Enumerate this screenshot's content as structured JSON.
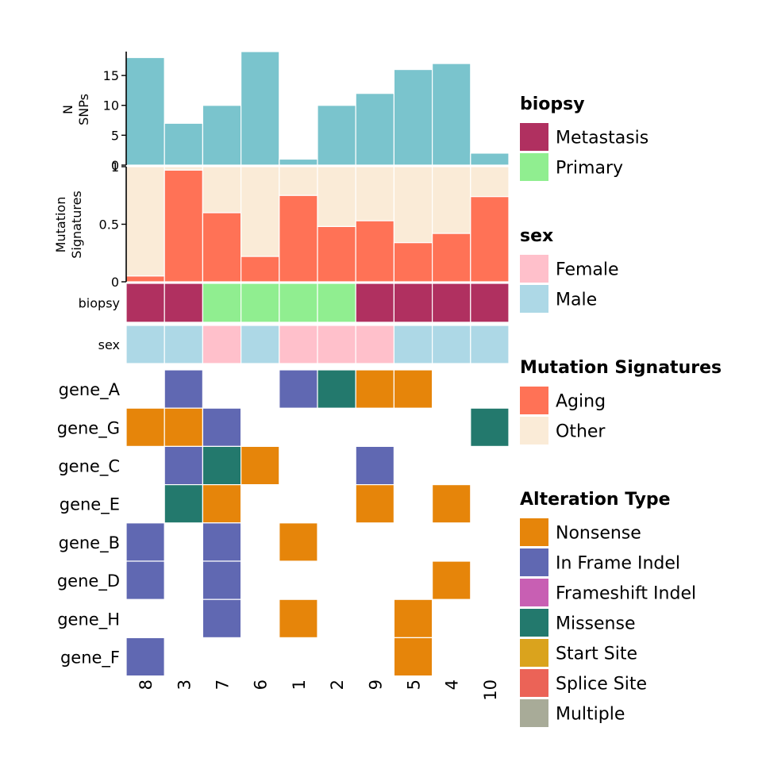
{
  "chart_data": {
    "type": "oncoplot",
    "samples": [
      "8",
      "3",
      "7",
      "6",
      "1",
      "2",
      "9",
      "5",
      "4",
      "10"
    ],
    "n_snps": {
      "ylabel_lines": [
        "N",
        "SNPs"
      ],
      "ylim": [
        0,
        19
      ],
      "ticks": [
        0,
        5,
        10,
        15
      ],
      "tick_labels": [
        "0",
        "5",
        "10",
        "15"
      ],
      "values": [
        18,
        7,
        10,
        19,
        1,
        10,
        12,
        16,
        17,
        2
      ]
    },
    "mutation_signatures": {
      "ylabel_lines": [
        "Mutation",
        "Signatures"
      ],
      "ylim": [
        0,
        1
      ],
      "ticks": [
        0,
        0.5,
        1
      ],
      "tick_labels": [
        "0",
        "0.5",
        "1"
      ],
      "aging": [
        0.05,
        0.97,
        0.6,
        0.22,
        0.75,
        0.48,
        0.53,
        0.34,
        0.42,
        0.74
      ]
    },
    "biopsy": {
      "label": "biopsy",
      "values": [
        "Metastasis",
        "Metastasis",
        "Primary",
        "Primary",
        "Primary",
        "Primary",
        "Metastasis",
        "Metastasis",
        "Metastasis",
        "Metastasis"
      ]
    },
    "sex": {
      "label": "sex",
      "values": [
        "Male",
        "Male",
        "Female",
        "Male",
        "Female",
        "Female",
        "Female",
        "Male",
        "Male",
        "Male"
      ]
    },
    "genes": [
      "gene_A",
      "gene_G",
      "gene_C",
      "gene_E",
      "gene_B",
      "gene_D",
      "gene_H",
      "gene_F"
    ],
    "alterations": [
      [
        "",
        "In Frame Indel",
        "",
        "",
        "In Frame Indel",
        "Missense",
        "Nonsense",
        "Nonsense",
        "",
        ""
      ],
      [
        "Nonsense",
        "Nonsense",
        "In Frame Indel",
        "",
        "",
        "",
        "",
        "",
        "",
        "Missense"
      ],
      [
        "",
        "In Frame Indel",
        "Missense",
        "Nonsense",
        "",
        "",
        "In Frame Indel",
        "",
        "",
        ""
      ],
      [
        "",
        "Missense",
        "Nonsense",
        "",
        "",
        "",
        "Nonsense",
        "",
        "Nonsense",
        ""
      ],
      [
        "In Frame Indel",
        "",
        "In Frame Indel",
        "",
        "Nonsense",
        "",
        "",
        "",
        "",
        ""
      ],
      [
        "In Frame Indel",
        "",
        "In Frame Indel",
        "",
        "",
        "",
        "",
        "",
        "Nonsense",
        ""
      ],
      [
        "",
        "",
        "In Frame Indel",
        "",
        "Nonsense",
        "",
        "",
        "Nonsense",
        "",
        ""
      ],
      [
        "In Frame Indel",
        "",
        "",
        "",
        "",
        "",
        "",
        "Nonsense",
        "",
        ""
      ]
    ],
    "legends": [
      {
        "title": "biopsy",
        "items": [
          {
            "label": "Metastasis",
            "color": "#B03060"
          },
          {
            "label": "Primary",
            "color": "#90EE90"
          }
        ]
      },
      {
        "title": "sex",
        "items": [
          {
            "label": "Female",
            "color": "#FFC0CB"
          },
          {
            "label": "Male",
            "color": "#ADD8E6"
          }
        ]
      },
      {
        "title": "Mutation Signatures",
        "items": [
          {
            "label": "Aging",
            "color": "#FF7256"
          },
          {
            "label": "Other",
            "color": "#FAEBD7"
          }
        ]
      },
      {
        "title": "Alteration Type",
        "items": [
          {
            "label": "Nonsense",
            "color": "#E6850A"
          },
          {
            "label": "In Frame Indel",
            "color": "#6068B2"
          },
          {
            "label": "Frameshift Indel",
            "color": "#C85FB3"
          },
          {
            "label": "Missense",
            "color": "#23796D"
          },
          {
            "label": "Start Site",
            "color": "#DAA31D"
          },
          {
            "label": "Splice Site",
            "color": "#EB6357"
          },
          {
            "label": "Multiple",
            "color": "#A8AB98"
          }
        ]
      }
    ],
    "bar_color": "#7AC4CD",
    "legend_position": "right"
  }
}
